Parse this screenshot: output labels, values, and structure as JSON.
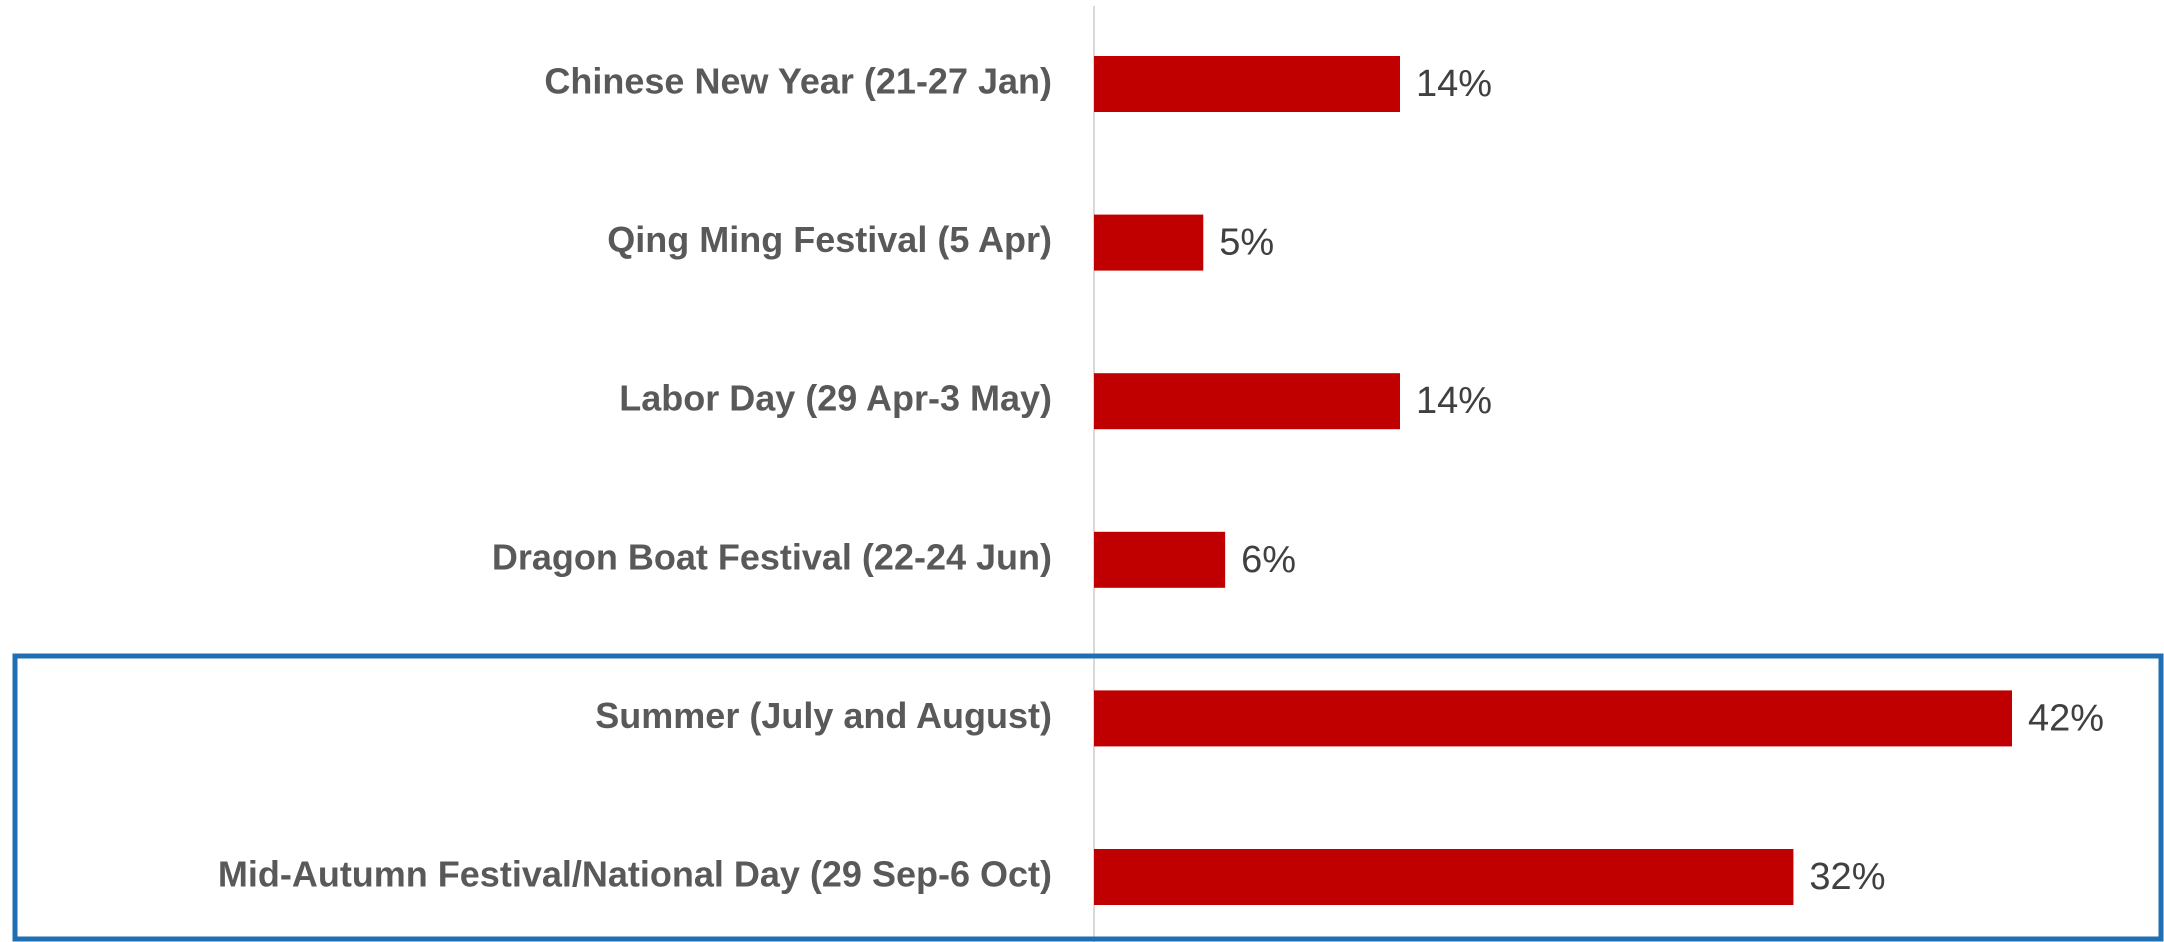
{
  "chart_data": {
    "type": "bar",
    "orientation": "horizontal",
    "categories": [
      "Chinese New Year (21-27 Jan)",
      "Qing Ming Festival (5 Apr)",
      "Labor Day (29 Apr-3 May)",
      "Dragon Boat Festival (22-24 Jun)",
      "Summer (July and August)",
      "Mid-Autumn Festival/National Day (29 Sep-6 Oct)"
    ],
    "values": [
      14,
      5,
      14,
      6,
      42,
      32
    ],
    "value_labels": [
      "14%",
      "5%",
      "14%",
      "6%",
      "42%",
      "32%"
    ],
    "color": "#c00000"
  }
}
